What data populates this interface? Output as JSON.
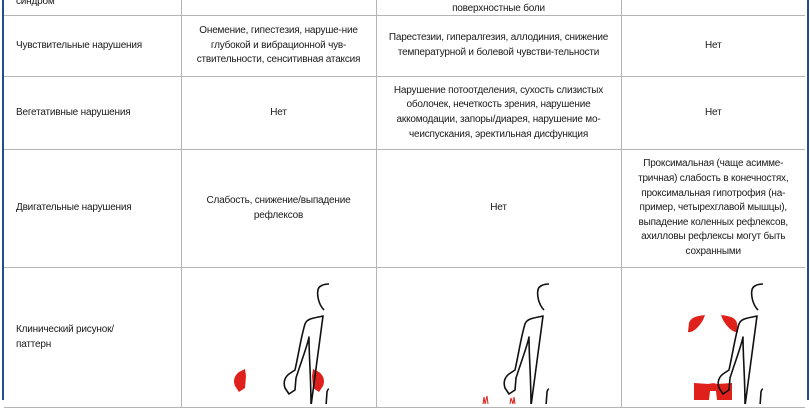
{
  "table": {
    "rows": [
      {
        "label": "синдром",
        "c1": "",
        "c2": "поверхностные боли",
        "c3": ""
      },
      {
        "label": "Чувствительные нарушения",
        "c1": "Онемение, гипестезия, наруше-ние глубокой и вибрационной чув-ствительности, сенситивная атаксия",
        "c2": "Парестезии, гипералгезия, аллодиния, снижение температурной и болевой чувстви-тельности",
        "c3": "Нет"
      },
      {
        "label": "Вегетативные нарушения",
        "c1": "Нет",
        "c2": "Нарушение потоотделения, сухость слизистых оболочек, нечеткость зрения, нарушение аккомодации, запоры/диарея, нарушение мо-чеиспускания, эректильная дисфункция",
        "c3": "Нет"
      },
      {
        "label": "Двигательные нарушения",
        "c1": "Слабость, снижение/выпадение рефлексов",
        "c2": "Нет",
        "c3": "Проксимальная (чаще асимме-тричная) слабость в конечностях, проксимальная гипотрофия (на-пример, четырехглавой мышцы), выпадение коленных рефлексов, ахилловы рефлексы могут быть сохранными"
      },
      {
        "label": "Клинический рисунок/ паттерн",
        "figures": [
          "body-hands-highlighted",
          "body-feet-highlighted",
          "body-shoulders-thighs-highlighted"
        ]
      }
    ]
  },
  "colors": {
    "border": "#1f4e8c",
    "highlight": "#e0201b",
    "grid": "#b5b5b5"
  }
}
